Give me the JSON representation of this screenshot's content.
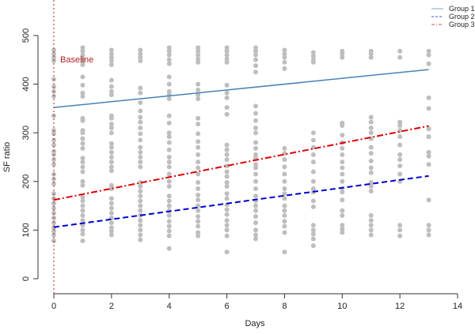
{
  "chart_data": {
    "type": "scatter",
    "xlabel": "Days",
    "ylabel": "SF ratio",
    "xlim": [
      0,
      14
    ],
    "ylim": [
      0,
      500
    ],
    "xticks": [
      0,
      2,
      4,
      6,
      8,
      10,
      12,
      14
    ],
    "yticks": [
      0,
      100,
      200,
      300,
      400,
      500
    ],
    "baseline": {
      "x": 0,
      "label": "Baseline",
      "color": "#b22222"
    },
    "point_color": "#bebebe",
    "points": [
      {
        "day": 0,
        "y": [
          470,
          462,
          455,
          448,
          410,
          395,
          385,
          375,
          335,
          305,
          298,
          285,
          275,
          262,
          255,
          245,
          235,
          215,
          205,
          195,
          175,
          165,
          155,
          145,
          135,
          125,
          115,
          105,
          98,
          90,
          78
        ]
      },
      {
        "day": 1,
        "y": [
          475,
          468,
          460,
          452,
          445,
          440,
          415,
          398,
          382,
          375,
          330,
          325,
          305,
          300,
          288,
          278,
          268,
          248,
          240,
          230,
          220,
          200,
          192,
          168,
          160,
          150,
          140,
          130,
          120,
          110,
          100,
          92,
          78
        ]
      },
      {
        "day": 2,
        "y": [
          470,
          462,
          455,
          448,
          440,
          408,
          395,
          385,
          378,
          335,
          330,
          318,
          310,
          300,
          278,
          270,
          260,
          250,
          240,
          230,
          222,
          192,
          185,
          165,
          155,
          145,
          135,
          125,
          115,
          105,
          98,
          90
        ]
      },
      {
        "day": 3,
        "y": [
          470,
          462,
          455,
          448,
          392,
          382,
          362,
          345,
          332,
          322,
          310,
          298,
          285,
          270,
          260,
          250,
          240,
          230,
          198,
          190,
          180,
          170,
          160,
          150,
          140,
          130,
          120,
          110,
          100,
          90,
          80
        ]
      },
      {
        "day": 4,
        "y": [
          475,
          468,
          460,
          450,
          442,
          415,
          400,
          385,
          378,
          370,
          335,
          320,
          300,
          292,
          280,
          265,
          250,
          240,
          230,
          215,
          200,
          190,
          170,
          160,
          150,
          140,
          130,
          118,
          108,
          98,
          88,
          62
        ]
      },
      {
        "day": 5,
        "y": [
          475,
          468,
          460,
          452,
          445,
          400,
          388,
          378,
          370,
          330,
          318,
          298,
          282,
          270,
          255,
          240,
          228,
          215,
          198,
          185,
          172,
          162,
          150,
          140,
          128,
          118,
          108,
          95,
          88
        ]
      },
      {
        "day": 6,
        "y": [
          475,
          468,
          460,
          452,
          445,
          398,
          382,
          372,
          352,
          338,
          275,
          265,
          255,
          245,
          232,
          220,
          210,
          198,
          190,
          175,
          165,
          152,
          142,
          132,
          120,
          110,
          100,
          88,
          55
        ]
      },
      {
        "day": 7,
        "y": [
          475,
          468,
          460,
          450,
          438,
          425,
          355,
          340,
          325,
          310,
          300,
          280,
          268,
          255,
          248,
          235,
          228,
          215,
          200,
          185,
          170,
          160,
          150,
          140,
          128,
          115,
          100,
          90,
          82
        ]
      },
      {
        "day": 8,
        "y": [
          470,
          462,
          455,
          445,
          432,
          268,
          258,
          245,
          230,
          215,
          200,
          185,
          175,
          165,
          150,
          140,
          130,
          118,
          108,
          95,
          55
        ]
      },
      {
        "day": 9,
        "y": [
          465,
          458,
          450,
          445,
          300,
          285,
          270,
          255,
          240,
          220,
          200,
          185,
          178,
          160,
          148,
          110,
          100,
          92,
          82,
          68
        ]
      },
      {
        "day": 10,
        "y": [
          468,
          462,
          455,
          320,
          315,
          295,
          280,
          268,
          255,
          240,
          228,
          215,
          200,
          185,
          178,
          162,
          140,
          130,
          110,
          102,
          95
        ]
      },
      {
        "day": 11,
        "y": [
          468,
          462,
          455,
          332,
          322,
          310,
          300,
          288,
          270,
          258,
          242,
          228,
          218,
          198,
          190,
          180,
          130,
          120,
          110,
          100,
          90
        ]
      },
      {
        "day": 12,
        "y": [
          468,
          455,
          322,
          315,
          305,
          292,
          275,
          255,
          245,
          232,
          215,
          200,
          110,
          100,
          88
        ]
      },
      {
        "day": 13,
        "y": [
          468,
          460,
          442,
          372,
          350,
          308,
          292,
          260,
          252,
          235,
          162,
          110,
          100,
          90
        ]
      }
    ],
    "series": [
      {
        "name": "Group 1",
        "color": "#4682b4",
        "dash": "solid",
        "intercept": 352,
        "slope": 6.0,
        "x": [
          0,
          13
        ]
      },
      {
        "name": "Group 2",
        "color": "#0000cd",
        "dash": "dashed",
        "intercept": 106,
        "slope": 8.1,
        "x": [
          0,
          13
        ]
      },
      {
        "name": "Group 3",
        "color": "#e00000",
        "dash": "dotdash",
        "intercept": 162,
        "slope": 11.7,
        "x": [
          0,
          13
        ]
      }
    ],
    "legend_position": "top-right"
  }
}
